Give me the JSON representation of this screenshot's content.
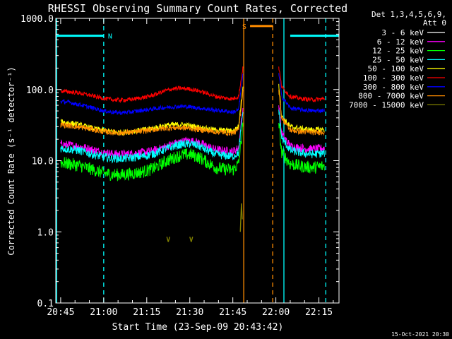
{
  "chart_data": {
    "type": "line",
    "title": "RHESSI Observing Summary Count Rates, Corrected",
    "xlabel": "Start Time (23-Sep-09 20:43:42)",
    "ylabel": "Corrected Count Rate (s⁻¹ detector⁻¹)",
    "yscale": "log",
    "ylim": [
      0.1,
      1000
    ],
    "xlim_minutes": [
      -1.7,
      97
    ],
    "x_ticks": [
      {
        "m": 0,
        "label": "20:45"
      },
      {
        "m": 15,
        "label": "21:00"
      },
      {
        "m": 30,
        "label": "21:15"
      },
      {
        "m": 45,
        "label": "21:30"
      },
      {
        "m": 60,
        "label": "21:45"
      },
      {
        "m": 75,
        "label": "22:00"
      },
      {
        "m": 90,
        "label": "22:15"
      }
    ],
    "y_ticks": [
      {
        "v": 1000,
        "label": "1000.0"
      },
      {
        "v": 100,
        "label": "100.0"
      },
      {
        "v": 10,
        "label": "10.0"
      },
      {
        "v": 1,
        "label": "1.0"
      },
      {
        "v": 0.1,
        "label": "0.1"
      }
    ],
    "legend_header": [
      "Det 1,3,4,5,6,9,",
      "Att 0"
    ],
    "legend_position": "right",
    "data_gap_minutes": [
      63.5,
      76
    ],
    "series": [
      {
        "name": "3 - 6 keV",
        "color": "#000000",
        "values": [
          [
            0,
            13.5
          ],
          [
            3,
            13
          ],
          [
            6,
            12.5
          ],
          [
            9,
            11.5
          ],
          [
            12,
            10.5
          ],
          [
            15,
            9.5
          ],
          [
            18,
            9
          ],
          [
            21,
            8.8
          ],
          [
            24,
            9
          ],
          [
            27,
            9.3
          ],
          [
            30,
            9.6
          ],
          [
            33,
            10.3
          ],
          [
            36,
            11.5
          ],
          [
            39,
            12.8
          ],
          [
            42,
            14
          ],
          [
            45,
            14.5
          ],
          [
            48,
            13.8
          ],
          [
            51,
            12
          ],
          [
            54,
            10.5
          ],
          [
            57,
            10
          ],
          [
            60,
            9.8
          ],
          [
            62,
            11
          ],
          [
            63.5,
            40
          ],
          [
            76,
            45
          ],
          [
            77,
            18
          ],
          [
            80,
            12
          ],
          [
            84,
            11
          ],
          [
            88,
            10.5
          ],
          [
            92,
            11
          ]
        ]
      },
      {
        "name": "6 - 12 keV",
        "color": "#ff00ff",
        "values": [
          [
            0,
            17
          ],
          [
            3,
            16.5
          ],
          [
            6,
            16
          ],
          [
            9,
            15
          ],
          [
            12,
            14
          ],
          [
            15,
            13
          ],
          [
            18,
            12.5
          ],
          [
            21,
            12.3
          ],
          [
            24,
            12.5
          ],
          [
            27,
            12.8
          ],
          [
            30,
            13.2
          ],
          [
            33,
            14
          ],
          [
            36,
            15.5
          ],
          [
            39,
            17
          ],
          [
            42,
            18.5
          ],
          [
            45,
            19
          ],
          [
            48,
            18
          ],
          [
            51,
            16
          ],
          [
            54,
            14.3
          ],
          [
            57,
            13.8
          ],
          [
            60,
            13.5
          ],
          [
            62,
            15
          ],
          [
            63.5,
            55
          ],
          [
            76,
            60
          ],
          [
            77,
            24
          ],
          [
            80,
            16
          ],
          [
            84,
            15
          ],
          [
            88,
            14.5
          ],
          [
            92,
            15
          ]
        ]
      },
      {
        "name": "12 - 25 keV",
        "color": "#00ff00",
        "values": [
          [
            0,
            9.5
          ],
          [
            3,
            9
          ],
          [
            6,
            8.6
          ],
          [
            9,
            8
          ],
          [
            12,
            7.3
          ],
          [
            15,
            6.7
          ],
          [
            18,
            6.4
          ],
          [
            21,
            6.3
          ],
          [
            24,
            6.5
          ],
          [
            27,
            6.8
          ],
          [
            30,
            7.2
          ],
          [
            33,
            8
          ],
          [
            36,
            9.5
          ],
          [
            39,
            10.8
          ],
          [
            42,
            12
          ],
          [
            45,
            12.3
          ],
          [
            48,
            11.3
          ],
          [
            51,
            9.5
          ],
          [
            54,
            8
          ],
          [
            57,
            7.6
          ],
          [
            60,
            7.4
          ],
          [
            62,
            9
          ],
          [
            63.5,
            30
          ],
          [
            76,
            34
          ],
          [
            77,
            13
          ],
          [
            80,
            9
          ],
          [
            84,
            8.3
          ],
          [
            88,
            8
          ],
          [
            92,
            8.5
          ]
        ]
      },
      {
        "name": "25 - 50 keV",
        "color": "#00ffff",
        "values": [
          [
            0,
            15
          ],
          [
            3,
            14.5
          ],
          [
            6,
            14
          ],
          [
            9,
            13
          ],
          [
            12,
            12
          ],
          [
            15,
            11.3
          ],
          [
            18,
            10.8
          ],
          [
            21,
            10.7
          ],
          [
            24,
            10.9
          ],
          [
            27,
            11.3
          ],
          [
            30,
            11.8
          ],
          [
            33,
            12.8
          ],
          [
            36,
            14.3
          ],
          [
            39,
            15.8
          ],
          [
            42,
            17
          ],
          [
            45,
            17.3
          ],
          [
            48,
            16.2
          ],
          [
            51,
            14
          ],
          [
            54,
            12.3
          ],
          [
            57,
            11.8
          ],
          [
            60,
            11.5
          ],
          [
            62,
            13
          ],
          [
            63.5,
            48
          ],
          [
            76,
            52
          ],
          [
            77,
            21
          ],
          [
            80,
            14
          ],
          [
            84,
            12.8
          ],
          [
            88,
            12.3
          ],
          [
            92,
            12.8
          ]
        ]
      },
      {
        "name": "50 - 100 keV",
        "color": "#ffff00",
        "values": [
          [
            0,
            35
          ],
          [
            3,
            34
          ],
          [
            6,
            32
          ],
          [
            9,
            30
          ],
          [
            12,
            28
          ],
          [
            15,
            26.5
          ],
          [
            18,
            25.5
          ],
          [
            21,
            25
          ],
          [
            24,
            25.5
          ],
          [
            27,
            26.5
          ],
          [
            30,
            27.5
          ],
          [
            33,
            29
          ],
          [
            36,
            31
          ],
          [
            39,
            32
          ],
          [
            42,
            32
          ],
          [
            45,
            31
          ],
          [
            48,
            29.5
          ],
          [
            51,
            28
          ],
          [
            54,
            27
          ],
          [
            57,
            26.5
          ],
          [
            60,
            26
          ],
          [
            62,
            30
          ],
          [
            63.5,
            110
          ],
          [
            76,
            120
          ],
          [
            77,
            42
          ],
          [
            80,
            30
          ],
          [
            84,
            28
          ],
          [
            88,
            27
          ],
          [
            92,
            27.5
          ]
        ]
      },
      {
        "name": "100 - 300 keV",
        "color": "#ff0000",
        "values": [
          [
            0,
            95
          ],
          [
            3,
            93
          ],
          [
            6,
            90
          ],
          [
            9,
            85
          ],
          [
            12,
            80
          ],
          [
            15,
            75
          ],
          [
            18,
            72
          ],
          [
            21,
            71
          ],
          [
            24,
            72
          ],
          [
            27,
            75
          ],
          [
            30,
            79
          ],
          [
            33,
            85
          ],
          [
            36,
            95
          ],
          [
            39,
            102
          ],
          [
            42,
            104
          ],
          [
            45,
            102
          ],
          [
            48,
            96
          ],
          [
            51,
            88
          ],
          [
            54,
            80
          ],
          [
            57,
            76
          ],
          [
            60,
            74
          ],
          [
            62,
            80
          ],
          [
            63.5,
            200
          ],
          [
            76,
            210
          ],
          [
            77,
            110
          ],
          [
            80,
            80
          ],
          [
            84,
            74
          ],
          [
            88,
            72
          ],
          [
            92,
            74
          ]
        ]
      },
      {
        "name": "300 - 800 keV",
        "color": "#0000ff",
        "values": [
          [
            0,
            68
          ],
          [
            3,
            66
          ],
          [
            6,
            62
          ],
          [
            9,
            58
          ],
          [
            12,
            54
          ],
          [
            15,
            50
          ],
          [
            18,
            48
          ],
          [
            21,
            47
          ],
          [
            24,
            48
          ],
          [
            27,
            50
          ],
          [
            30,
            52
          ],
          [
            33,
            54
          ],
          [
            36,
            56
          ],
          [
            39,
            57
          ],
          [
            42,
            58
          ],
          [
            45,
            57
          ],
          [
            48,
            55
          ],
          [
            51,
            53
          ],
          [
            54,
            51
          ],
          [
            57,
            50
          ],
          [
            60,
            48
          ],
          [
            62,
            52
          ],
          [
            63.5,
            160
          ],
          [
            76,
            170
          ],
          [
            77,
            80
          ],
          [
            80,
            55
          ],
          [
            84,
            52
          ],
          [
            88,
            50
          ],
          [
            92,
            51
          ]
        ]
      },
      {
        "name": "800 - 7000 keV",
        "color": "#ff8c00",
        "values": [
          [
            0,
            32
          ],
          [
            3,
            31
          ],
          [
            6,
            30
          ],
          [
            9,
            28.5
          ],
          [
            12,
            27
          ],
          [
            15,
            25.5
          ],
          [
            18,
            25
          ],
          [
            21,
            24.5
          ],
          [
            24,
            25
          ],
          [
            27,
            25.5
          ],
          [
            30,
            26.5
          ],
          [
            33,
            27.5
          ],
          [
            36,
            28.5
          ],
          [
            39,
            29
          ],
          [
            42,
            29
          ],
          [
            45,
            28.5
          ],
          [
            48,
            27.5
          ],
          [
            51,
            26.5
          ],
          [
            54,
            25.5
          ],
          [
            57,
            25
          ],
          [
            60,
            24.5
          ],
          [
            62,
            27
          ],
          [
            63.5,
            95
          ],
          [
            76,
            100
          ],
          [
            77,
            40
          ],
          [
            80,
            27
          ],
          [
            84,
            25.5
          ],
          [
            88,
            25
          ],
          [
            92,
            25.5
          ]
        ]
      },
      {
        "name": "7000 - 15000 keV",
        "color": "#808000",
        "values": [
          [
            37,
            0.85
          ],
          [
            37.5,
            0.72
          ],
          [
            38,
            0.85
          ],
          [
            45,
            0.85
          ],
          [
            45.5,
            0.72
          ],
          [
            46,
            0.85
          ],
          [
            62.6,
            1.0
          ],
          [
            63,
            2.5
          ],
          [
            63.3,
            1.5
          ]
        ]
      }
    ],
    "annotations": [
      {
        "type": "night-bar",
        "label": "N",
        "color": "#00ffff",
        "x1": -1.5,
        "x2": 15,
        "y": 570
      },
      {
        "type": "night-bar",
        "label": "",
        "color": "#00ffff",
        "x1": 80,
        "x2": 97,
        "y": 570
      },
      {
        "type": "saa-bar",
        "label": "S",
        "color": "#ff8c00",
        "x1": 66,
        "x2": 74,
        "y": 780
      }
    ],
    "vlines": [
      {
        "m": -1.4,
        "color": "#00ffff",
        "style": "solid"
      },
      {
        "m": 15,
        "color": "#00ffff",
        "style": "dashed"
      },
      {
        "m": 63.8,
        "color": "#ff8c00",
        "style": "solid"
      },
      {
        "m": 73.9,
        "color": "#ff8c00",
        "style": "dashed"
      },
      {
        "m": 77.8,
        "color": "#00ffff",
        "style": "solid"
      },
      {
        "m": 92.4,
        "color": "#00ffff",
        "style": "dashed"
      }
    ],
    "footer": "15-Oct-2021 20:30"
  }
}
